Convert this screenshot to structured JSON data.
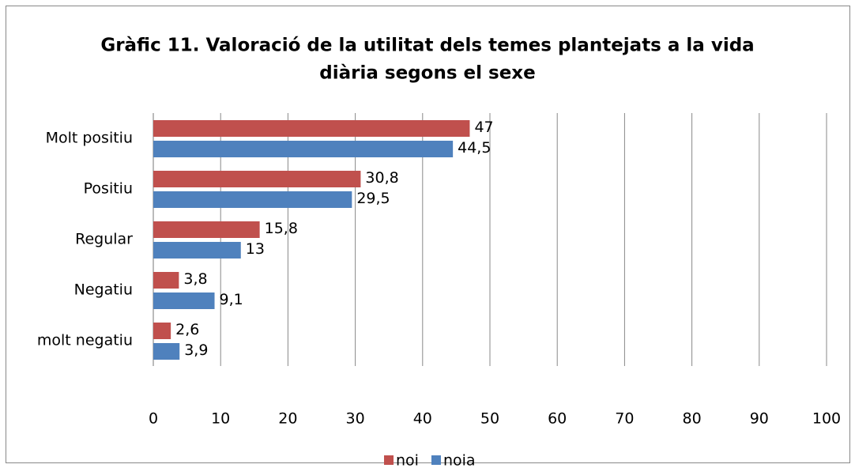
{
  "chart_data": {
    "type": "bar",
    "orientation": "horizontal",
    "title": [
      "Gràfic 11. Valoració de la utilitat dels temes plantejats a la vida",
      "diària segons el sexe"
    ],
    "categories": [
      "Molt positiu",
      "Positiu",
      "Regular",
      "Negatiu",
      "molt negatiu"
    ],
    "series": [
      {
        "name": "noi",
        "color": "#c0504d",
        "values": [
          47,
          30.8,
          15.8,
          3.8,
          2.6
        ],
        "value_labels": [
          "47",
          "30,8",
          "15,8",
          "3,8",
          "2,6"
        ]
      },
      {
        "name": "noia",
        "color": "#4f81bd",
        "values": [
          44.5,
          29.5,
          13,
          9.1,
          3.9
        ],
        "value_labels": [
          "44,5",
          "29,5",
          "13",
          "9,1",
          "3,9"
        ]
      }
    ],
    "xlim": [
      0,
      100
    ],
    "xticks": [
      0,
      10,
      20,
      30,
      40,
      50,
      60,
      70,
      80,
      90,
      100
    ],
    "grid": true,
    "legend": "bottom"
  }
}
